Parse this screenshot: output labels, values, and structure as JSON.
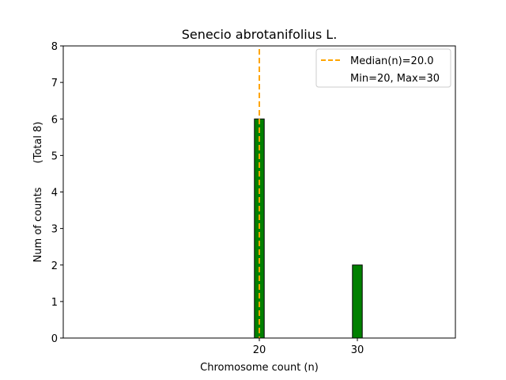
{
  "chart_data": {
    "type": "bar",
    "title": "Senecio abrotanifolius L.",
    "xlabel": "Chromosome count (n)",
    "ylabel": "Num of counts",
    "ylabel_total": "(Total 8)",
    "xlim": [
      0,
      40
    ],
    "ylim": [
      0,
      8
    ],
    "xticks": [
      20,
      30
    ],
    "yticks": [
      0,
      1,
      2,
      3,
      4,
      5,
      6,
      7,
      8
    ],
    "bars": [
      {
        "x": 20,
        "value": 6
      },
      {
        "x": 30,
        "value": 2
      }
    ],
    "bar_width": 1,
    "bar_color": "#008000",
    "bar_edge_color": "#000000",
    "median": 20.0,
    "median_color": "#ffa500",
    "legend": {
      "placement": "top-right",
      "entries": [
        "Median(n)=20.0",
        "Min=20, Max=30"
      ]
    }
  }
}
